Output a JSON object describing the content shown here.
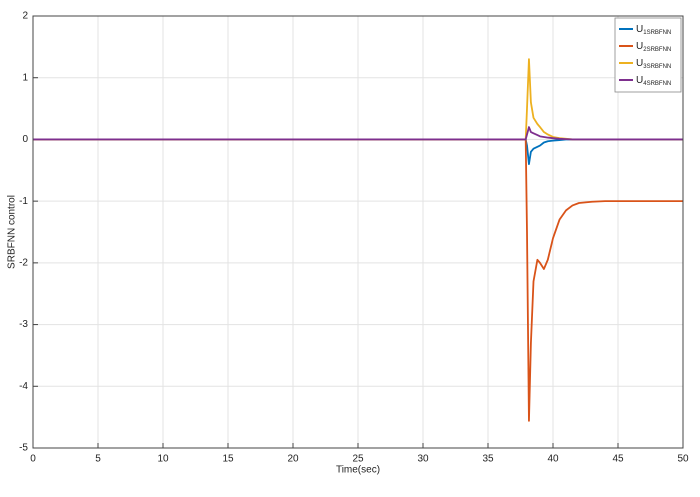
{
  "chart_data": {
    "type": "line",
    "xlabel": "Time(sec)",
    "ylabel": "SRBFNN control",
    "x": [
      0,
      37.9,
      38.0,
      38.15,
      38.3,
      38.5,
      38.8,
      39.0,
      39.3,
      39.6,
      40,
      40.5,
      41,
      41.5,
      42,
      43,
      44,
      50
    ],
    "series": [
      {
        "name": "U1SRBFNN",
        "color": "#0072bd",
        "values": [
          0,
          0,
          -0.1,
          -0.4,
          -0.2,
          -0.15,
          -0.12,
          -0.1,
          -0.05,
          -0.03,
          -0.02,
          -0.01,
          0,
          0,
          0,
          0,
          0,
          0
        ]
      },
      {
        "name": "U2SRBFNN",
        "color": "#d95319",
        "values": [
          0,
          0,
          -1.5,
          -4.56,
          -3.3,
          -2.3,
          -1.95,
          -2.0,
          -2.1,
          -1.95,
          -1.6,
          -1.3,
          -1.15,
          -1.07,
          -1.03,
          -1.01,
          -1.0,
          -1.0
        ]
      },
      {
        "name": "U3SRBFNN",
        "color": "#edb120",
        "values": [
          0,
          0,
          0.5,
          1.3,
          0.6,
          0.35,
          0.25,
          0.2,
          0.12,
          0.08,
          0.04,
          0.02,
          0.01,
          0,
          0,
          0,
          0,
          0
        ]
      },
      {
        "name": "U4SRBFNN",
        "color": "#7e2f8e",
        "values": [
          0,
          0,
          0.08,
          0.2,
          0.12,
          0.1,
          0.07,
          0.05,
          0.04,
          0.03,
          0.02,
          0.01,
          0.005,
          0,
          0,
          0,
          0,
          0
        ]
      }
    ],
    "xlim": [
      0,
      50
    ],
    "xticks": [
      0,
      5,
      10,
      15,
      20,
      25,
      30,
      35,
      40,
      45,
      50
    ],
    "ylim": [
      -5,
      2
    ],
    "yticks": [
      -5,
      -4,
      -3,
      -2,
      -1,
      0,
      1,
      2
    ],
    "grid": true,
    "legend": "upper right"
  }
}
